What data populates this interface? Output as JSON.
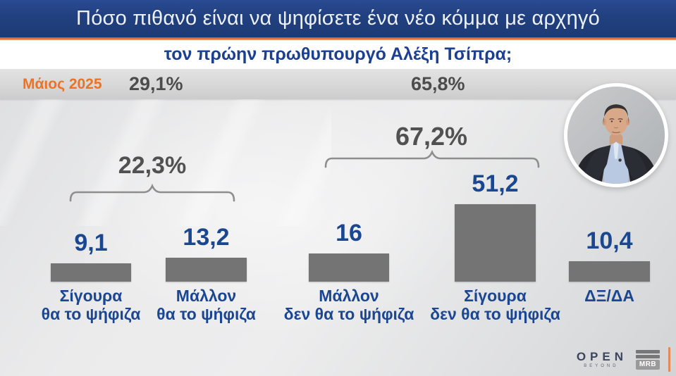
{
  "header": {
    "title": "Πόσο πιθανό είναι να ψηφίσετε ένα νέο κόμμα με αρχηγό",
    "subtitle": "τον πρώην πρωθυπουργό Αλέξη Τσίπρα;",
    "bar_color": "#21407f",
    "accent_color": "#e4753a"
  },
  "meta_band": {
    "date_label": "Μάιος 2025",
    "left_total": "29,1%",
    "right_total": "65,8%"
  },
  "chart_data": {
    "type": "bar",
    "title": "Πόσο πιθανό είναι να ψηφίσετε ένα νέο κόμμα με αρχηγό τον πρώην πρωθυπουργό Αλέξη Τσίπρα;",
    "categories": [
      "Σίγουρα θα το ψήφιζα",
      "Μάλλον θα το ψήφιζα",
      "Μάλλον δεν θα το ψήφιζα",
      "Σίγουρα δεν θα το ψήφιζα",
      "ΔΞ/ΔΑ"
    ],
    "categories_lines": [
      [
        "Σίγουρα",
        "θα το ψήφιζα"
      ],
      [
        "Μάλλον",
        "θα το ψήφιζα"
      ],
      [
        "Μάλλον",
        "δεν θα το ψήφιζα"
      ],
      [
        "Σίγουρα",
        "δεν θα το ψήφιζα"
      ],
      [
        "ΔΞ/ΔΑ"
      ]
    ],
    "values": [
      9.1,
      13.2,
      16,
      51.2,
      10.4
    ],
    "value_labels": [
      "9,1",
      "13,2",
      "16",
      "51,2",
      "10,4"
    ],
    "groups": [
      {
        "label": "22,3%",
        "bars": [
          "Σίγουρα θα το ψήφιζα",
          "Μάλλον θα το ψήφιζα"
        ]
      },
      {
        "label": "67,2%",
        "bars": [
          "Μάλλον δεν θα το ψήφιζα",
          "Σίγουρα δεν θα το ψήφιζα"
        ]
      }
    ],
    "summary_totals": {
      "left": "29,1%",
      "right": "65,8%"
    },
    "bar_color": "#747474",
    "value_color": "#1b4691",
    "group_label_color": "#515151",
    "ylim": [
      0,
      55
    ],
    "grid": false,
    "legend": false
  },
  "footer": {
    "open_label": "OPEN",
    "open_sub": "BEYOND",
    "mrb_label": "MRB"
  }
}
